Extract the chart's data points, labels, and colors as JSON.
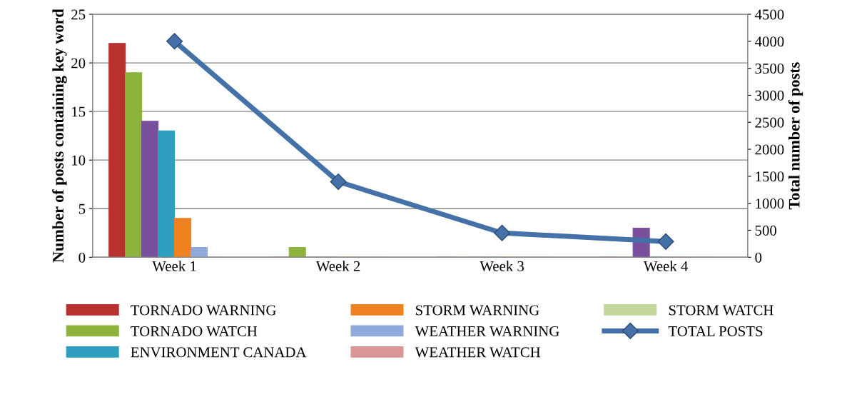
{
  "chart_data": {
    "type": "bar",
    "categories": [
      "Week 1",
      "Week 2",
      "Week 3",
      "Week 4"
    ],
    "ylabel": "Number of posts containing key word",
    "y2label": "Total number of posts",
    "ylim": [
      0,
      25
    ],
    "yticks": [
      0,
      5,
      10,
      15,
      20,
      25
    ],
    "y2lim": [
      0,
      4500
    ],
    "y2ticks": [
      0,
      500,
      1000,
      1500,
      2000,
      2500,
      3000,
      3500,
      4000,
      4500
    ],
    "grid": "y",
    "legend": "bottom",
    "series": [
      {
        "name": "TORNADO WARNING",
        "color": "#b8312f",
        "values": [
          22,
          0,
          0,
          0
        ]
      },
      {
        "name": "TORNADO WATCH",
        "color": "#8db33d",
        "values": [
          19,
          1,
          0,
          0
        ]
      },
      {
        "color": "#7a4f9c",
        "values": [
          14,
          0,
          0,
          3
        ]
      },
      {
        "name": "ENVIRONMENT CANADA",
        "color": "#2e9fbf",
        "values": [
          13,
          0,
          0,
          0
        ]
      },
      {
        "name": "STORM WARNING",
        "color": "#ef8220",
        "values": [
          4,
          0,
          0,
          0
        ]
      },
      {
        "name": "WEATHER WARNING",
        "color": "#8fa9da",
        "values": [
          1,
          0,
          0,
          0
        ]
      },
      {
        "name": "WEATHER WATCH",
        "color": "#d99694",
        "values": [
          0,
          0,
          0,
          0
        ]
      },
      {
        "name": "STORM WATCH",
        "color": "#c3d69b",
        "values": [
          0,
          0,
          0,
          0
        ]
      },
      {
        "name": "TOTAL POSTS",
        "type": "line",
        "axis": "y2",
        "marker": "diamond",
        "color": "#4472a8",
        "values": [
          4000,
          1400,
          450,
          290
        ]
      }
    ]
  }
}
